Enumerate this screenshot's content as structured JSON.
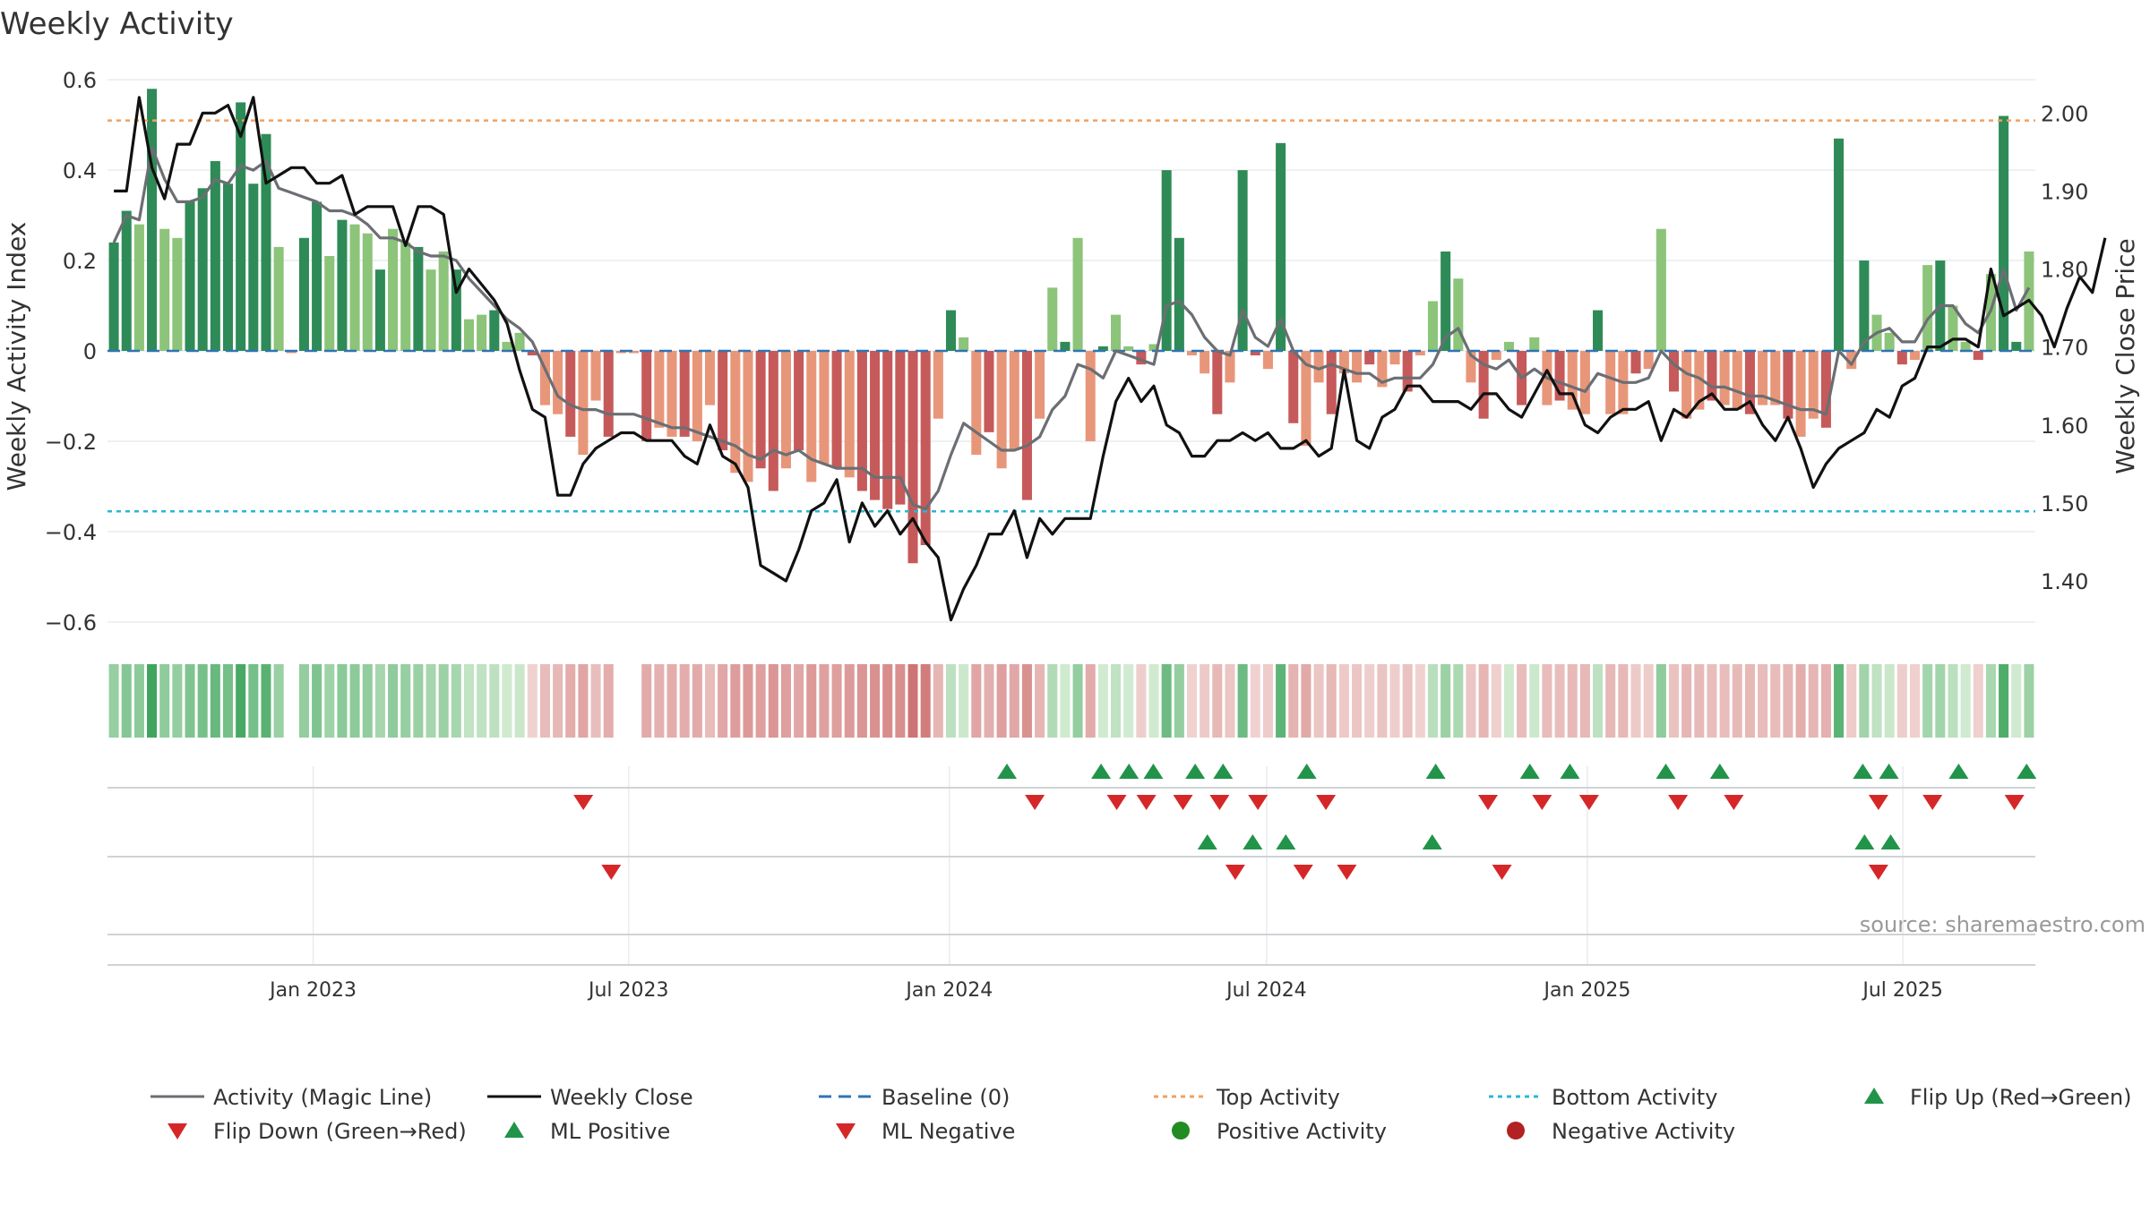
{
  "chart_data": {
    "type": "bar",
    "title": "Weekly Activity",
    "ylabel_left": "Weekly Activity Index",
    "ylabel_right": "Weekly Close Price",
    "ylim_left": [
      -0.63,
      0.63
    ],
    "ylim_right": [
      1.33,
      2.06
    ],
    "yticks_left": [
      0.6,
      0.4,
      0.2,
      0,
      -0.2,
      -0.4,
      -0.6
    ],
    "yticks_left_labels": [
      "0.6",
      "0.4",
      "0.2",
      "0",
      "−0.2",
      "−0.4",
      "−0.6"
    ],
    "yticks_right": [
      2.0,
      1.9,
      1.8,
      1.7,
      1.6,
      1.5,
      1.4
    ],
    "yticks_right_labels": [
      "2.00",
      "1.90",
      "1.80",
      "1.70",
      "1.60",
      "1.50",
      "1.40"
    ],
    "x_start": "2022-09-05",
    "x_end": "2025-09-15",
    "xticks": [
      {
        "date": "2023-01-01",
        "label": "Jan 2023"
      },
      {
        "date": "2023-07-01",
        "label": "Jul 2023"
      },
      {
        "date": "2024-01-01",
        "label": "Jan 2024"
      },
      {
        "date": "2024-07-01",
        "label": "Jul 2024"
      },
      {
        "date": "2025-01-01",
        "label": "Jan 2025"
      },
      {
        "date": "2025-07-01",
        "label": "Jul 2025"
      }
    ],
    "baseline": 0,
    "top_activity": 0.51,
    "bottom_activity": -0.355,
    "activity": [
      0.24,
      0.31,
      0.28,
      0.58,
      0.27,
      0.25,
      0.33,
      0.36,
      0.42,
      0.37,
      0.55,
      0.37,
      0.48,
      0.23,
      -0.005,
      0.25,
      0.33,
      0.21,
      0.29,
      0.28,
      0.26,
      0.18,
      0.27,
      0.24,
      0.23,
      0.18,
      0.22,
      0.18,
      0.07,
      0.08,
      0.09,
      0.02,
      0.04,
      -0.01,
      -0.12,
      -0.14,
      -0.19,
      -0.23,
      -0.11,
      -0.19,
      -0.005,
      -0.005,
      -0.2,
      -0.17,
      -0.19,
      -0.19,
      -0.2,
      -0.12,
      -0.22,
      -0.27,
      -0.29,
      -0.26,
      -0.31,
      -0.26,
      -0.22,
      -0.29,
      -0.25,
      -0.26,
      -0.28,
      -0.31,
      -0.33,
      -0.35,
      -0.34,
      -0.47,
      -0.43,
      -0.15,
      0.09,
      0.03,
      -0.23,
      -0.18,
      -0.26,
      -0.22,
      -0.33,
      -0.15,
      0.14,
      0.02,
      0.25,
      -0.2,
      0.01,
      0.08,
      0.01,
      -0.03,
      0.015,
      0.4,
      0.25,
      -0.01,
      -0.05,
      -0.14,
      -0.07,
      0.4,
      -0.01,
      -0.04,
      0.46,
      -0.16,
      -0.21,
      -0.07,
      -0.14,
      -0.05,
      -0.07,
      -0.03,
      -0.08,
      -0.03,
      -0.09,
      -0.01,
      0.11,
      0.22,
      0.16,
      -0.07,
      -0.15,
      -0.02,
      0.02,
      -0.12,
      0.03,
      -0.12,
      -0.11,
      -0.13,
      -0.14,
      0.09,
      -0.14,
      -0.14,
      -0.05,
      -0.04,
      0.27,
      -0.09,
      -0.15,
      -0.13,
      -0.11,
      -0.12,
      -0.13,
      -0.14,
      -0.12,
      -0.12,
      -0.15,
      -0.19,
      -0.15,
      -0.17,
      0.47,
      -0.04,
      0.2,
      0.08,
      0.04,
      -0.03,
      -0.02,
      0.19,
      0.2,
      0.1,
      0.02,
      -0.02,
      0.17,
      0.52,
      0.02,
      0.22
    ],
    "weekly_close": [
      1.9,
      1.9,
      2.02,
      1.93,
      1.89,
      1.96,
      1.96,
      2.0,
      2.0,
      2.01,
      1.97,
      2.02,
      1.91,
      1.92,
      1.93,
      1.93,
      1.91,
      1.91,
      1.92,
      1.87,
      1.88,
      1.88,
      1.88,
      1.83,
      1.88,
      1.88,
      1.87,
      1.77,
      1.8,
      1.78,
      1.76,
      1.73,
      1.67,
      1.62,
      1.61,
      1.51,
      1.51,
      1.55,
      1.57,
      1.58,
      1.59,
      1.59,
      1.58,
      1.58,
      1.58,
      1.56,
      1.55,
      1.6,
      1.56,
      1.55,
      1.52,
      1.42,
      1.41,
      1.4,
      1.44,
      1.49,
      1.5,
      1.53,
      1.45,
      1.5,
      1.47,
      1.49,
      1.46,
      1.48,
      1.45,
      1.43,
      1.35,
      1.39,
      1.42,
      1.46,
      1.46,
      1.49,
      1.43,
      1.48,
      1.46,
      1.48,
      1.48,
      1.48,
      1.56,
      1.63,
      1.66,
      1.63,
      1.65,
      1.6,
      1.59,
      1.56,
      1.56,
      1.58,
      1.58,
      1.59,
      1.58,
      1.59,
      1.57,
      1.57,
      1.58,
      1.56,
      1.57,
      1.67,
      1.58,
      1.57,
      1.61,
      1.62,
      1.65,
      1.65,
      1.63,
      1.63,
      1.63,
      1.62,
      1.64,
      1.64,
      1.62,
      1.61,
      1.64,
      1.67,
      1.64,
      1.64,
      1.6,
      1.59,
      1.61,
      1.62,
      1.62,
      1.63,
      1.58,
      1.62,
      1.61,
      1.63,
      1.64,
      1.62,
      1.62,
      1.63,
      1.6,
      1.58,
      1.61,
      1.57,
      1.52,
      1.55,
      1.57,
      1.58,
      1.59,
      1.62,
      1.61,
      1.65,
      1.66,
      1.7,
      1.7,
      1.71,
      1.71,
      1.7,
      1.8,
      1.74,
      1.75,
      1.76,
      1.74,
      1.7,
      1.75,
      1.79,
      1.77,
      1.84
    ],
    "magic_line": [
      0.24,
      0.3,
      0.29,
      0.45,
      0.38,
      0.33,
      0.33,
      0.34,
      0.38,
      0.37,
      0.41,
      0.4,
      0.42,
      0.36,
      0.35,
      0.34,
      0.33,
      0.31,
      0.31,
      0.3,
      0.28,
      0.25,
      0.25,
      0.24,
      0.22,
      0.21,
      0.21,
      0.2,
      0.16,
      0.13,
      0.1,
      0.07,
      0.05,
      0.02,
      -0.04,
      -0.1,
      -0.12,
      -0.13,
      -0.13,
      -0.14,
      -0.14,
      -0.14,
      -0.15,
      -0.16,
      -0.17,
      -0.17,
      -0.18,
      -0.19,
      -0.2,
      -0.21,
      -0.23,
      -0.24,
      -0.22,
      -0.23,
      -0.22,
      -0.24,
      -0.25,
      -0.26,
      -0.26,
      -0.26,
      -0.28,
      -0.28,
      -0.28,
      -0.34,
      -0.35,
      -0.31,
      -0.23,
      -0.16,
      -0.18,
      -0.2,
      -0.22,
      -0.22,
      -0.21,
      -0.19,
      -0.13,
      -0.1,
      -0.03,
      -0.04,
      -0.06,
      0.0,
      -0.01,
      -0.02,
      -0.03,
      0.1,
      0.11,
      0.08,
      0.03,
      0.0,
      -0.01,
      0.09,
      0.03,
      0.01,
      0.07,
      0.0,
      -0.03,
      -0.04,
      -0.03,
      -0.04,
      -0.05,
      -0.05,
      -0.07,
      -0.06,
      -0.06,
      -0.06,
      -0.03,
      0.03,
      0.05,
      -0.01,
      -0.03,
      -0.04,
      -0.02,
      -0.06,
      -0.04,
      -0.06,
      -0.07,
      -0.08,
      -0.09,
      -0.05,
      -0.06,
      -0.07,
      -0.07,
      -0.06,
      0.0,
      -0.03,
      -0.05,
      -0.06,
      -0.08,
      -0.08,
      -0.09,
      -0.1,
      -0.1,
      -0.11,
      -0.12,
      -0.13,
      -0.13,
      -0.14,
      0.0,
      -0.03,
      0.02,
      0.04,
      0.05,
      0.02,
      0.02,
      0.07,
      0.1,
      0.1,
      0.06,
      0.04,
      0.09,
      0.18,
      0.09,
      0.14
    ],
    "series": [
      {
        "name": "Activity (Magic Line)",
        "role": "magic_line"
      },
      {
        "name": "Weekly Close",
        "role": "weekly_close"
      }
    ],
    "flip_up_dates": [
      "2024-02-03",
      "2024-03-28",
      "2024-04-13",
      "2024-04-27",
      "2024-05-21",
      "2024-06-06",
      "2024-07-24",
      "2024-10-06",
      "2024-11-29",
      "2024-12-22",
      "2025-02-15",
      "2025-03-18",
      "2025-06-08",
      "2025-06-23",
      "2025-08-02",
      "2025-09-10"
    ],
    "flip_down_dates": [
      "2023-06-05",
      "2024-02-19",
      "2024-04-06",
      "2024-04-23",
      "2024-05-14",
      "2024-06-04",
      "2024-06-26",
      "2024-08-04",
      "2024-11-05",
      "2024-12-06",
      "2025-01-02",
      "2025-02-22",
      "2025-03-26",
      "2025-06-17",
      "2025-07-18",
      "2025-09-03"
    ],
    "ml_positive_dates": [
      "2024-05-28",
      "2024-06-23",
      "2024-07-12",
      "2024-10-04",
      "2025-06-09",
      "2025-06-24"
    ],
    "ml_negative_dates": [
      "2023-06-21",
      "2024-06-13",
      "2024-07-22",
      "2024-08-16",
      "2024-11-13",
      "2025-06-17"
    ],
    "source": "source: sharemaestro.com",
    "legend_position": "bottom",
    "legend": [
      {
        "label": "Activity (Magic Line)",
        "kind": "line",
        "color": "#6b6e73",
        "dash": "none"
      },
      {
        "label": "Weekly Close",
        "kind": "line",
        "color": "#111111",
        "dash": "none"
      },
      {
        "label": "Baseline (0)",
        "kind": "line",
        "color": "#2f74b5",
        "dash": "dashed"
      },
      {
        "label": "Top Activity",
        "kind": "line",
        "color": "#f0a060",
        "dash": "dotted"
      },
      {
        "label": "Bottom Activity",
        "kind": "line",
        "color": "#27b8d3",
        "dash": "dotted"
      },
      {
        "label": "Flip Up (Red→Green)",
        "kind": "tri-up",
        "color": "#21944a"
      },
      {
        "label": "Flip Down (Green→Red)",
        "kind": "tri-down",
        "color": "#d62728"
      },
      {
        "label": "ML Positive",
        "kind": "tri-up",
        "color": "#21944a"
      },
      {
        "label": "ML Negative",
        "kind": "tri-down",
        "color": "#d62728"
      },
      {
        "label": "Positive Activity",
        "kind": "dot",
        "color": "#228b22"
      },
      {
        "label": "Negative Activity",
        "kind": "dot",
        "color": "#b22222"
      }
    ],
    "colors": {
      "pos_strong": "#2e8b57",
      "pos_light": "#8cc47a",
      "neg_strong": "#c65a5a",
      "neg_light": "#e8967a",
      "grid": "#e9ebed",
      "axis": "#cfd3d6"
    }
  }
}
